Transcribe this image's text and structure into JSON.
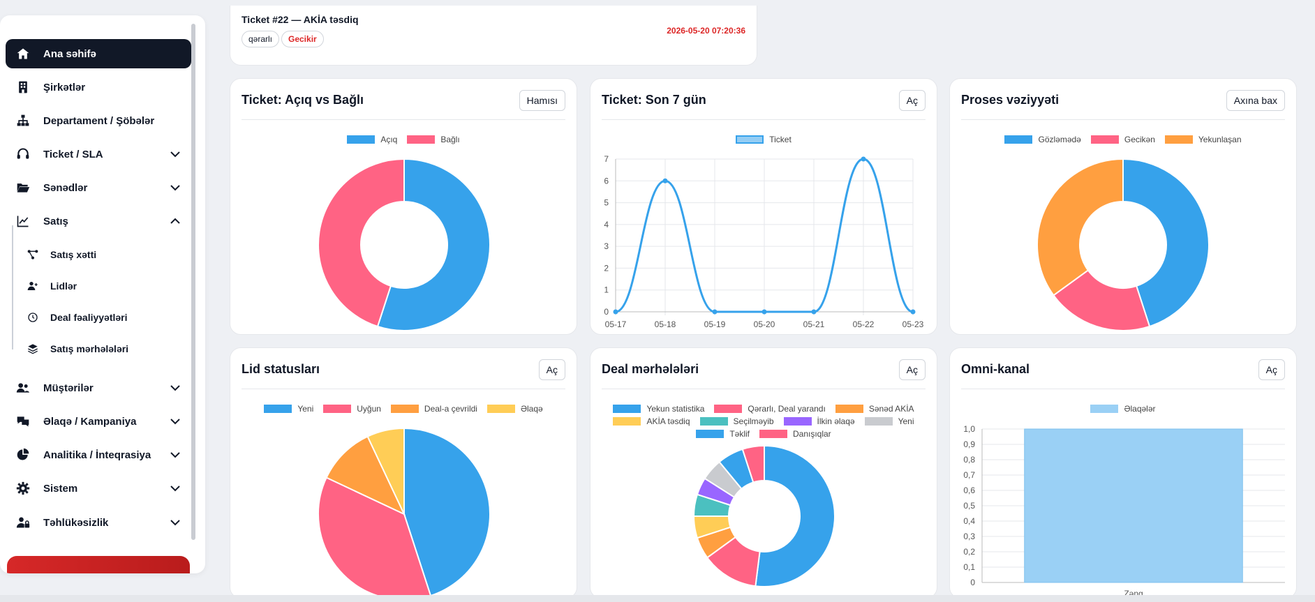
{
  "sidebar": {
    "items": [
      {
        "label": "Ana səhifə",
        "icon": "home-icon",
        "active": true
      },
      {
        "label": "Şirkətlər",
        "icon": "building-icon"
      },
      {
        "label": "Departament / Şöbələr",
        "icon": "sitemap-icon"
      },
      {
        "label": "Ticket / SLA",
        "icon": "headset-icon",
        "expand": "down"
      },
      {
        "label": "Sənədlər",
        "icon": "folder-open-icon",
        "expand": "down"
      },
      {
        "label": "Satış",
        "icon": "line-chart-icon",
        "expand": "up"
      },
      {
        "label": "Müştərilər",
        "icon": "users-icon",
        "expand": "down"
      },
      {
        "label": "Əlaqə / Kampaniya",
        "icon": "comments-icon",
        "expand": "down"
      },
      {
        "label": "Analitika / İnteqrasiya",
        "icon": "pie-chart-icon",
        "expand": "down"
      },
      {
        "label": "Sistem",
        "icon": "gear-icon",
        "expand": "down"
      },
      {
        "label": "Təhlükəsizlik",
        "icon": "user-lock-icon",
        "expand": "down"
      }
    ],
    "satis_sub": [
      {
        "label": "Satış xətti",
        "icon": "pipeline-icon"
      },
      {
        "label": "Lidlər",
        "icon": "user-plus-icon"
      },
      {
        "label": "Deal fəaliyyətləri",
        "icon": "clock-icon"
      },
      {
        "label": "Satış mərhələləri",
        "icon": "layers-icon"
      }
    ]
  },
  "ticket": {
    "title": "Ticket #22 — AKİA təsdiq",
    "tags": [
      "qərarlı",
      "Gecikir"
    ],
    "date": "2026-05-20 07:20:36"
  },
  "cards": {
    "c1": {
      "title": "Ticket: Açıq vs Bağlı",
      "button": "Hamısı"
    },
    "c2": {
      "title": "Ticket: Son 7 gün",
      "button": "Aç"
    },
    "c3": {
      "title": "Proses vəziyyəti",
      "button": "Axına bax"
    },
    "c4": {
      "title": "Lid statusları",
      "button": "Aç"
    },
    "c5": {
      "title": "Deal mərhələləri",
      "button": "Aç"
    },
    "c6": {
      "title": "Omni-kanal",
      "button": "Aç"
    }
  },
  "chart_data": [
    {
      "id": "c1",
      "type": "pie",
      "donut": true,
      "categories": [
        "Açıq",
        "Bağlı"
      ],
      "values": [
        55,
        45
      ],
      "colors": [
        "#36a2eb",
        "#ff6384"
      ]
    },
    {
      "id": "c2",
      "type": "line",
      "series": [
        {
          "name": "Ticket",
          "values": [
            0,
            6,
            0,
            0,
            0,
            7,
            0
          ]
        }
      ],
      "x": [
        "05-17",
        "05-18",
        "05-19",
        "05-20",
        "05-21",
        "05-22",
        "05-23"
      ],
      "ylim": [
        0,
        7
      ],
      "yticks": [
        "0",
        "1",
        "2",
        "3",
        "4",
        "5",
        "6",
        "7"
      ],
      "colors": [
        "#36a2eb"
      ],
      "grid": true
    },
    {
      "id": "c3",
      "type": "pie",
      "donut": true,
      "categories": [
        "Gözləmədə",
        "Gecikən",
        "Yekunlaşan"
      ],
      "values": [
        45,
        20,
        35
      ],
      "colors": [
        "#36a2eb",
        "#ff6384",
        "#ff9f40"
      ]
    },
    {
      "id": "c4",
      "type": "pie",
      "donut": false,
      "categories": [
        "Yeni",
        "Uyğun",
        "Deal-a çevrildi",
        "Əlaqə"
      ],
      "values": [
        45,
        37,
        11,
        7
      ],
      "colors": [
        "#36a2eb",
        "#ff6384",
        "#ff9f40",
        "#ffcd56"
      ]
    },
    {
      "id": "c5",
      "type": "pie",
      "donut": true,
      "categories": [
        "Yekun statistika",
        "Qərarlı, Deal yarandı",
        "Sənəd AKİA",
        "AKİA təsdiq",
        "Seçilməyib",
        "İlkin əlaqə",
        "Yeni",
        "Təklif",
        "Danışıqlar"
      ],
      "values": [
        52,
        13,
        5,
        5,
        5,
        4,
        5,
        6,
        5
      ],
      "colors": [
        "#36a2eb",
        "#ff6384",
        "#ff9f40",
        "#ffcd56",
        "#4bc0c0",
        "#9966ff",
        "#c9cbcf",
        "#36a2eb",
        "#ff6384"
      ]
    },
    {
      "id": "c6",
      "type": "bar",
      "categories": [
        "Zəng"
      ],
      "series": [
        {
          "name": "Əlaqələr",
          "values": [
            1.0
          ]
        }
      ],
      "ylim": [
        0,
        1.0
      ],
      "yticks": [
        "0",
        "0,1",
        "0,2",
        "0,3",
        "0,4",
        "0,5",
        "0,6",
        "0,7",
        "0,8",
        "0,9",
        "1,0"
      ],
      "colors": [
        "#9ad0f5"
      ],
      "grid": true
    }
  ]
}
